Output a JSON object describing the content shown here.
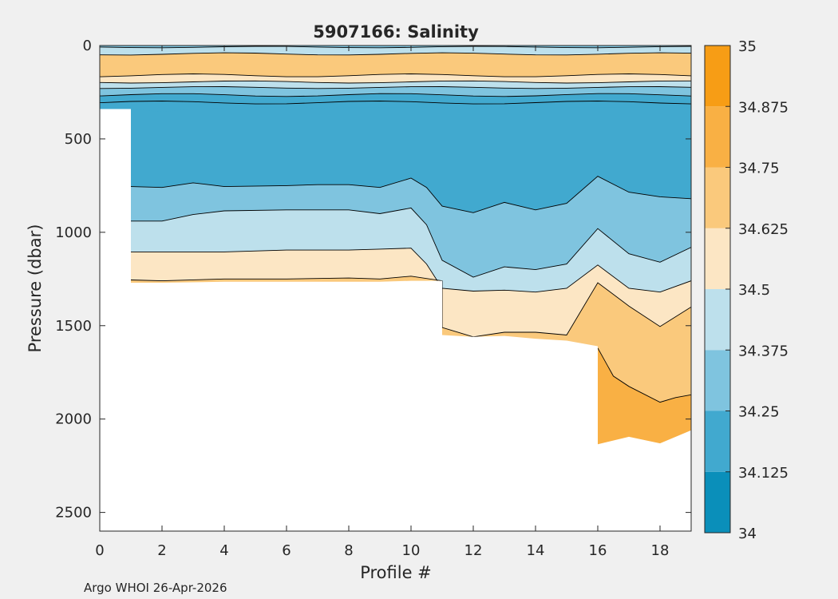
{
  "chart_data": {
    "type": "contourf",
    "title": "5907166:  Salinity",
    "xlabel": "Profile #",
    "ylabel": "Pressure (dbar)",
    "xlim": [
      0,
      19
    ],
    "ylim": [
      0,
      2600
    ],
    "y_reversed": true,
    "xticks": [
      "0",
      "2",
      "4",
      "6",
      "8",
      "10",
      "12",
      "14",
      "16",
      "18"
    ],
    "xtick_values": [
      0,
      2,
      4,
      6,
      8,
      10,
      12,
      14,
      16,
      18
    ],
    "yticks": [
      "0",
      "500",
      "1000",
      "1500",
      "2000",
      "2500"
    ],
    "ytick_values": [
      0,
      500,
      1000,
      1500,
      2000,
      2500
    ],
    "colorbar": {
      "min": 34,
      "max": 35,
      "levels": [
        34,
        34.125,
        34.25,
        34.375,
        34.5,
        34.625,
        34.75,
        34.875,
        35
      ],
      "tick_labels": [
        "34",
        "34.125",
        "34.25",
        "34.375",
        "34.5",
        "34.625",
        "34.75",
        "34.875",
        "35"
      ],
      "colors": [
        "#0a8fba",
        "#41a9cf",
        "#7fc4df",
        "#bde0ec",
        "#fce6c4",
        "#fac97c",
        "#f9b044",
        "#f79d15"
      ]
    },
    "profiles": [
      0,
      1,
      2,
      3,
      4,
      5,
      6,
      7,
      8,
      9,
      10,
      11,
      12,
      13,
      14,
      15,
      16,
      17,
      18,
      19
    ],
    "bottom_pressure": [
      [
        0,
        340
      ],
      [
        1,
        340
      ],
      [
        1,
        1270
      ],
      [
        2,
        1270
      ],
      [
        4,
        1265
      ],
      [
        6,
        1265
      ],
      [
        8,
        1265
      ],
      [
        9,
        1265
      ],
      [
        10,
        1260
      ],
      [
        11,
        1260
      ],
      [
        11,
        1550
      ],
      [
        12,
        1560
      ],
      [
        13,
        1555
      ],
      [
        14,
        1570
      ],
      [
        15,
        1580
      ],
      [
        16,
        1610
      ],
      [
        16,
        2135
      ],
      [
        17,
        2095
      ],
      [
        18,
        2130
      ],
      [
        19,
        2060
      ]
    ],
    "contour_boundaries": {
      "s_34_25": [
        [
          0,
          340
        ],
        [
          1,
          340
        ],
        [
          2,
          355
        ],
        [
          3,
          340
        ],
        [
          4,
          335
        ],
        [
          5,
          330
        ],
        [
          6,
          330
        ],
        [
          7,
          335
        ],
        [
          8,
          330
        ],
        [
          9,
          330
        ],
        [
          10,
          330
        ],
        [
          11,
          330
        ],
        [
          12,
          335
        ],
        [
          13,
          330
        ],
        [
          14,
          330
        ],
        [
          15,
          330
        ],
        [
          16,
          330
        ],
        [
          17,
          330
        ],
        [
          18,
          330
        ],
        [
          19,
          330
        ]
      ],
      "s_34_125": [
        [
          1,
          755
        ],
        [
          2,
          760
        ],
        [
          3,
          735
        ],
        [
          4,
          755
        ],
        [
          6,
          750
        ],
        [
          7,
          745
        ],
        [
          8,
          745
        ],
        [
          9,
          760
        ],
        [
          10,
          710
        ],
        [
          10.5,
          760
        ],
        [
          11,
          860
        ],
        [
          12,
          895
        ],
        [
          13,
          840
        ],
        [
          14,
          880
        ],
        [
          15,
          845
        ],
        [
          16,
          700
        ],
        [
          17,
          785
        ],
        [
          18,
          810
        ],
        [
          19,
          820
        ]
      ],
      "s_34_375": [
        [
          1,
          940
        ],
        [
          2,
          940
        ],
        [
          3,
          905
        ],
        [
          4,
          885
        ],
        [
          6,
          880
        ],
        [
          8,
          880
        ],
        [
          9,
          900
        ],
        [
          10,
          870
        ],
        [
          10.5,
          960
        ],
        [
          11,
          1150
        ],
        [
          12,
          1240
        ],
        [
          13,
          1185
        ],
        [
          14,
          1200
        ],
        [
          15,
          1170
        ],
        [
          16,
          980
        ],
        [
          17,
          1115
        ],
        [
          18,
          1160
        ],
        [
          19,
          1080
        ]
      ],
      "s_34_5": [
        [
          1,
          1105
        ],
        [
          2,
          1105
        ],
        [
          4,
          1105
        ],
        [
          6,
          1095
        ],
        [
          8,
          1095
        ],
        [
          9,
          1090
        ],
        [
          10,
          1085
        ],
        [
          10.5,
          1170
        ],
        [
          11,
          1300
        ],
        [
          12,
          1315
        ],
        [
          13,
          1310
        ],
        [
          14,
          1320
        ],
        [
          15,
          1300
        ],
        [
          16,
          1175
        ],
        [
          17,
          1300
        ],
        [
          18,
          1320
        ],
        [
          19,
          1260
        ]
      ],
      "s_34_625": [
        [
          1,
          1255
        ],
        [
          2,
          1260
        ],
        [
          4,
          1250
        ],
        [
          6,
          1250
        ],
        [
          8,
          1245
        ],
        [
          9,
          1250
        ],
        [
          10,
          1235
        ],
        [
          11,
          1260
        ],
        [
          11,
          1510
        ],
        [
          12,
          1560
        ],
        [
          13,
          1535
        ],
        [
          14,
          1535
        ],
        [
          15,
          1550
        ],
        [
          16,
          1270
        ],
        [
          17,
          1395
        ],
        [
          18,
          1505
        ],
        [
          19,
          1400
        ]
      ],
      "s_34_75": [
        [
          16,
          1620
        ],
        [
          16.5,
          1770
        ],
        [
          17,
          1825
        ],
        [
          18,
          1910
        ],
        [
          18.5,
          1885
        ],
        [
          19,
          1870
        ]
      ]
    }
  },
  "footer": {
    "credit": "Argo WHOI 26-Apr-2026"
  }
}
